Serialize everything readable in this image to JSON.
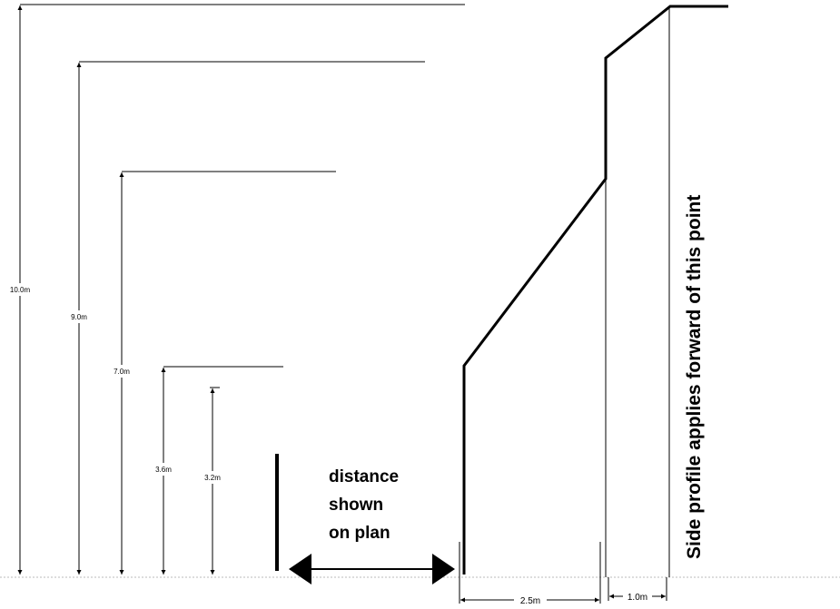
{
  "dimensions": {
    "h10": "10.0m",
    "h9": "9.0m",
    "h7": "7.0m",
    "h36": "3.6m",
    "h32": "3.2m",
    "w25": "2.5m",
    "w10": "1.0m"
  },
  "distance_note": [
    "distance",
    "shown",
    "on plan"
  ],
  "side_profile_note": "Side profile applies forward of this point"
}
